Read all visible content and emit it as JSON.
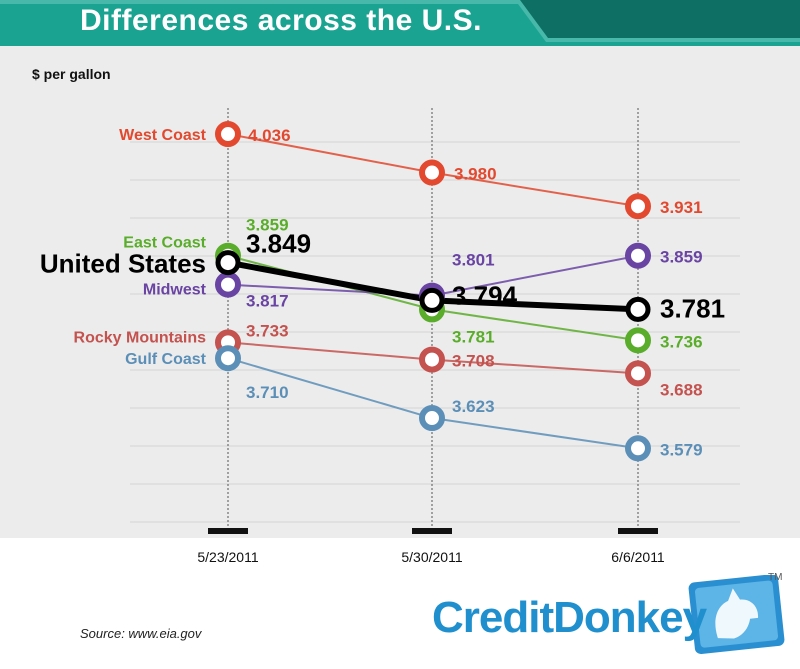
{
  "title": "Differences across the U.S.",
  "ylabel": "$ per gallon",
  "source": "Source: www.eia.gov",
  "logo": {
    "text": "CreditDonkey",
    "tm": "TM"
  },
  "colors": {
    "banner": "#1aa391",
    "banner_dark": "#0e6f64",
    "plot_bg": "#ececec",
    "grid": "#d4d4d4"
  },
  "chart_data": {
    "type": "line",
    "title": "Differences across the U.S.",
    "ylabel": "$ per gallon",
    "xlabel": "",
    "categories": [
      "5/23/2011",
      "5/30/2011",
      "6/6/2011"
    ],
    "ylim": [
      3.45,
      4.1
    ],
    "grid": true,
    "series": [
      {
        "name": "West Coast",
        "color": "#e2492f",
        "values": [
          4.036,
          3.98,
          3.931
        ],
        "labels": [
          "4.036",
          "3.980",
          "3.931"
        ]
      },
      {
        "name": "East Coast",
        "color": "#5aad2a",
        "values": [
          3.859,
          3.781,
          3.736
        ],
        "labels": [
          "3.859",
          "3.781",
          "3.736"
        ]
      },
      {
        "name": "United States",
        "color": "#000000",
        "values": [
          3.849,
          3.794,
          3.781
        ],
        "labels": [
          "3.849",
          "3.794",
          "3.781"
        ],
        "emphasis": true
      },
      {
        "name": "Midwest",
        "color": "#6a44a3",
        "values": [
          3.817,
          3.801,
          3.859
        ],
        "labels": [
          "3.817",
          "3.801",
          "3.859"
        ]
      },
      {
        "name": "Rocky Mountains",
        "color": "#c4524f",
        "values": [
          3.733,
          3.708,
          3.688
        ],
        "labels": [
          "3.733",
          "3.708",
          "3.688"
        ]
      },
      {
        "name": "Gulf Coast",
        "color": "#5b8fb7",
        "values": [
          3.71,
          3.623,
          3.579
        ],
        "labels": [
          "3.710",
          "3.623",
          "3.579"
        ]
      }
    ]
  }
}
